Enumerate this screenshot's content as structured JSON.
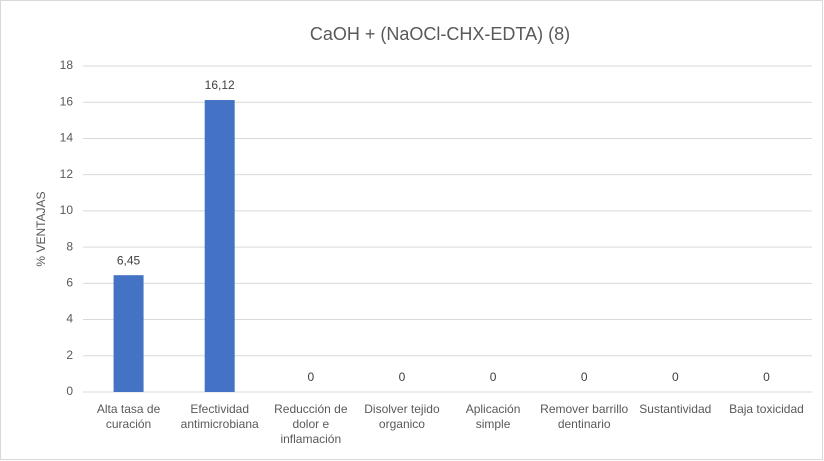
{
  "chart_data": {
    "type": "bar",
    "title": "CaOH + (NaOCl-CHX-EDTA) (8)",
    "y_label": "% VENTAJAS",
    "categories": [
      "Alta tasa de curación",
      "Efectividad antimicrobiana",
      "Reducción de dolor e inflamación",
      "Disolver tejido organico",
      "Aplicación simple",
      "Remover barrillo dentinario",
      "Sustantividad",
      "Baja toxicidad"
    ],
    "values": [
      6.45,
      16.12,
      0,
      0,
      0,
      0,
      0,
      0
    ],
    "value_labels": [
      "6,45",
      "16,12",
      "0",
      "0",
      "0",
      "0",
      "0",
      "0"
    ],
    "color": "#4472c4",
    "ylim": [
      0,
      18
    ],
    "yticks": [
      0,
      2,
      4,
      6,
      8,
      10,
      12,
      14,
      16,
      18
    ],
    "grid": true
  }
}
